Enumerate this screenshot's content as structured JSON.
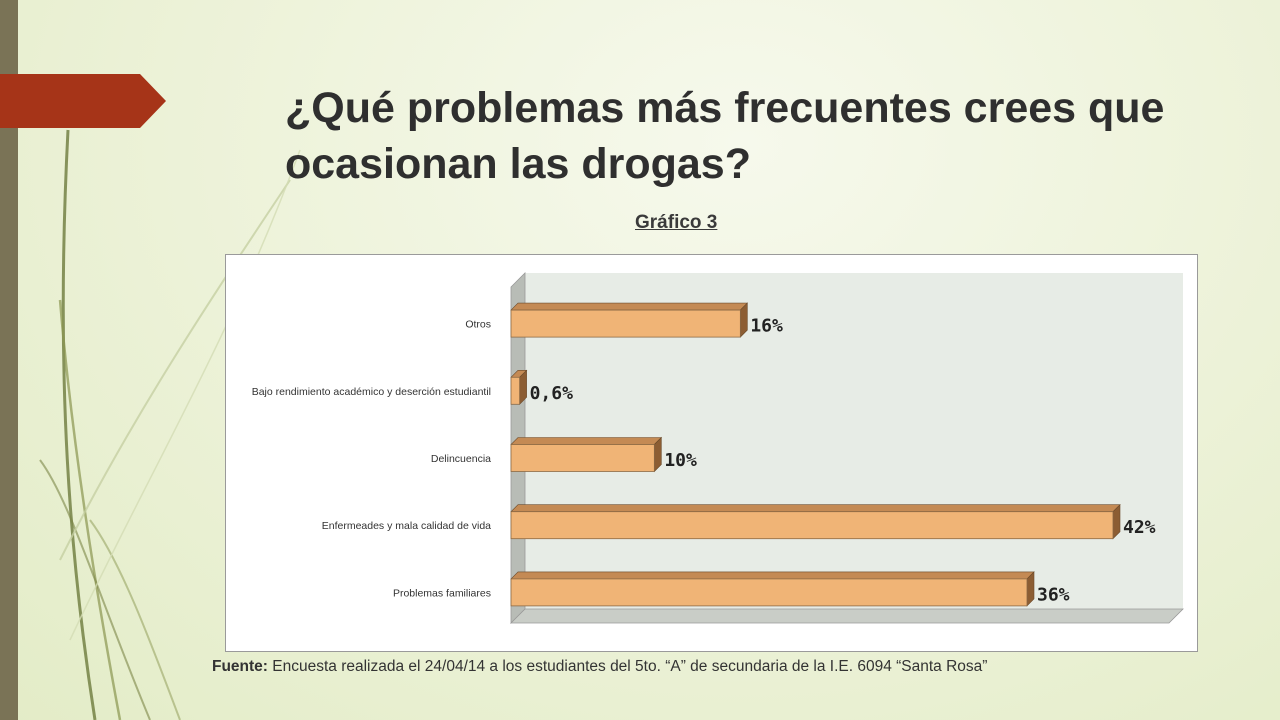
{
  "slide": {
    "title": "¿Qué problemas más frecuentes crees que ocasionan las drogas?",
    "chart_caption": "Gráfico 3",
    "source_label": "Fuente:",
    "source_text": "Encuesta realizada el 24/04/14 a los estudiantes del 5to. “A” de secundaria de la I.E. 6094 “Santa Rosa”"
  },
  "colors": {
    "accent_arrow": "#a63418",
    "left_bar": "#7a7356",
    "bar_front": "#f0b476",
    "bar_top": "#c48a54",
    "bar_side": "#8c5d33",
    "plot_back": "#e7ece6",
    "plot_floor": "#c9cdc7"
  },
  "chart_data": {
    "type": "bar",
    "orientation": "horizontal",
    "style": "3d",
    "title": "",
    "categories": [
      "Otros",
      "Bajo rendimiento académico y deserción estudiantil",
      "Delincuencia",
      "Enfermeades y mala calidad de vida",
      "Problemas familiares"
    ],
    "values": [
      16,
      0.6,
      10,
      42,
      36
    ],
    "data_labels": [
      "16%",
      "0,6%",
      "10%",
      "42%",
      "36%"
    ],
    "xlim": [
      0,
      42
    ],
    "grid": false,
    "legend": "none"
  }
}
